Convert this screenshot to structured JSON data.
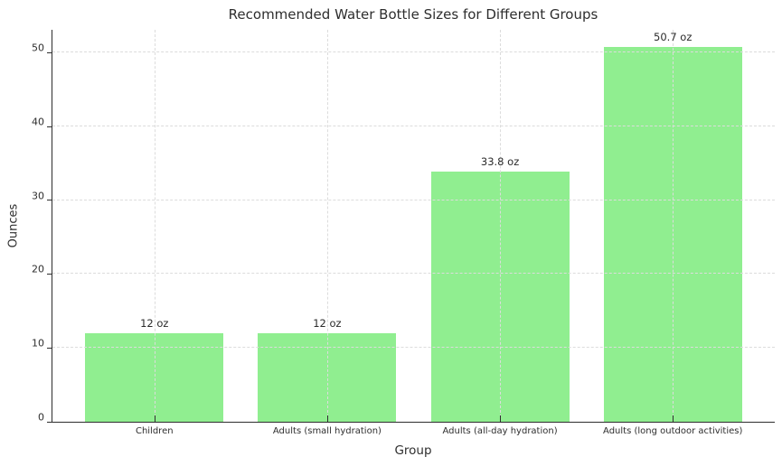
{
  "figure": {
    "background_color": "#ffffff",
    "text_color": "#2e2e2e",
    "gridline_color": "#dcdcdc"
  },
  "chart_data": {
    "type": "bar",
    "title": "Recommended Water Bottle Sizes for Different Groups",
    "xlabel": "Group",
    "ylabel": "Ounces",
    "categories": [
      "Children",
      "Adults (small hydration)",
      "Adults (all-day hydration)",
      "Adults (long outdoor activities)"
    ],
    "values": [
      12,
      12,
      33.8,
      50.7
    ],
    "bar_labels": [
      "12 oz",
      "12 oz",
      "33.8 oz",
      "50.7 oz"
    ],
    "yticks": [
      0,
      10,
      20,
      30,
      40,
      50
    ],
    "ylim": [
      0,
      53.05
    ],
    "bar_color": "#90EE90",
    "grid": "dashed, horizontal at y-ticks and vertical at bar centers",
    "legend": "none",
    "spines": "left and bottom only"
  }
}
